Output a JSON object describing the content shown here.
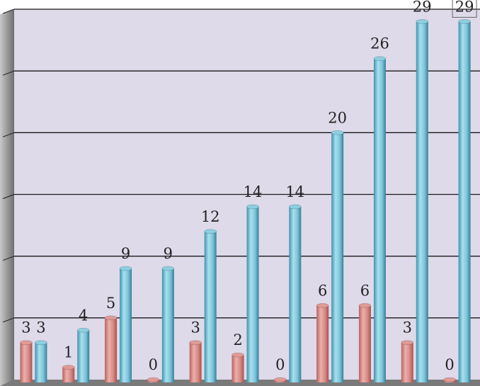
{
  "chart_data": {
    "type": "bar",
    "style": "3d-cylinder",
    "categories": [
      "",
      "",
      "",
      "",
      "",
      "",
      "",
      "",
      "",
      "",
      ""
    ],
    "series": [
      {
        "color": "#e09a96",
        "values": [
          3,
          1,
          5,
          0,
          3,
          2,
          0,
          6,
          6,
          3,
          0
        ]
      },
      {
        "color": "#8ccfe0",
        "values": [
          3,
          4,
          9,
          9,
          12,
          14,
          14,
          20,
          26,
          29,
          29
        ]
      }
    ],
    "ylim": [
      0,
      30
    ],
    "grid": true,
    "legend": "none",
    "highlighted_label": {
      "series": 1,
      "index": 10
    },
    "colors": {
      "plot_background": "#dedaea",
      "wall": "#8a8a8a",
      "floor": "#7a7a7a",
      "gridline": "#1a1a1a",
      "label_text": "#222222"
    }
  }
}
